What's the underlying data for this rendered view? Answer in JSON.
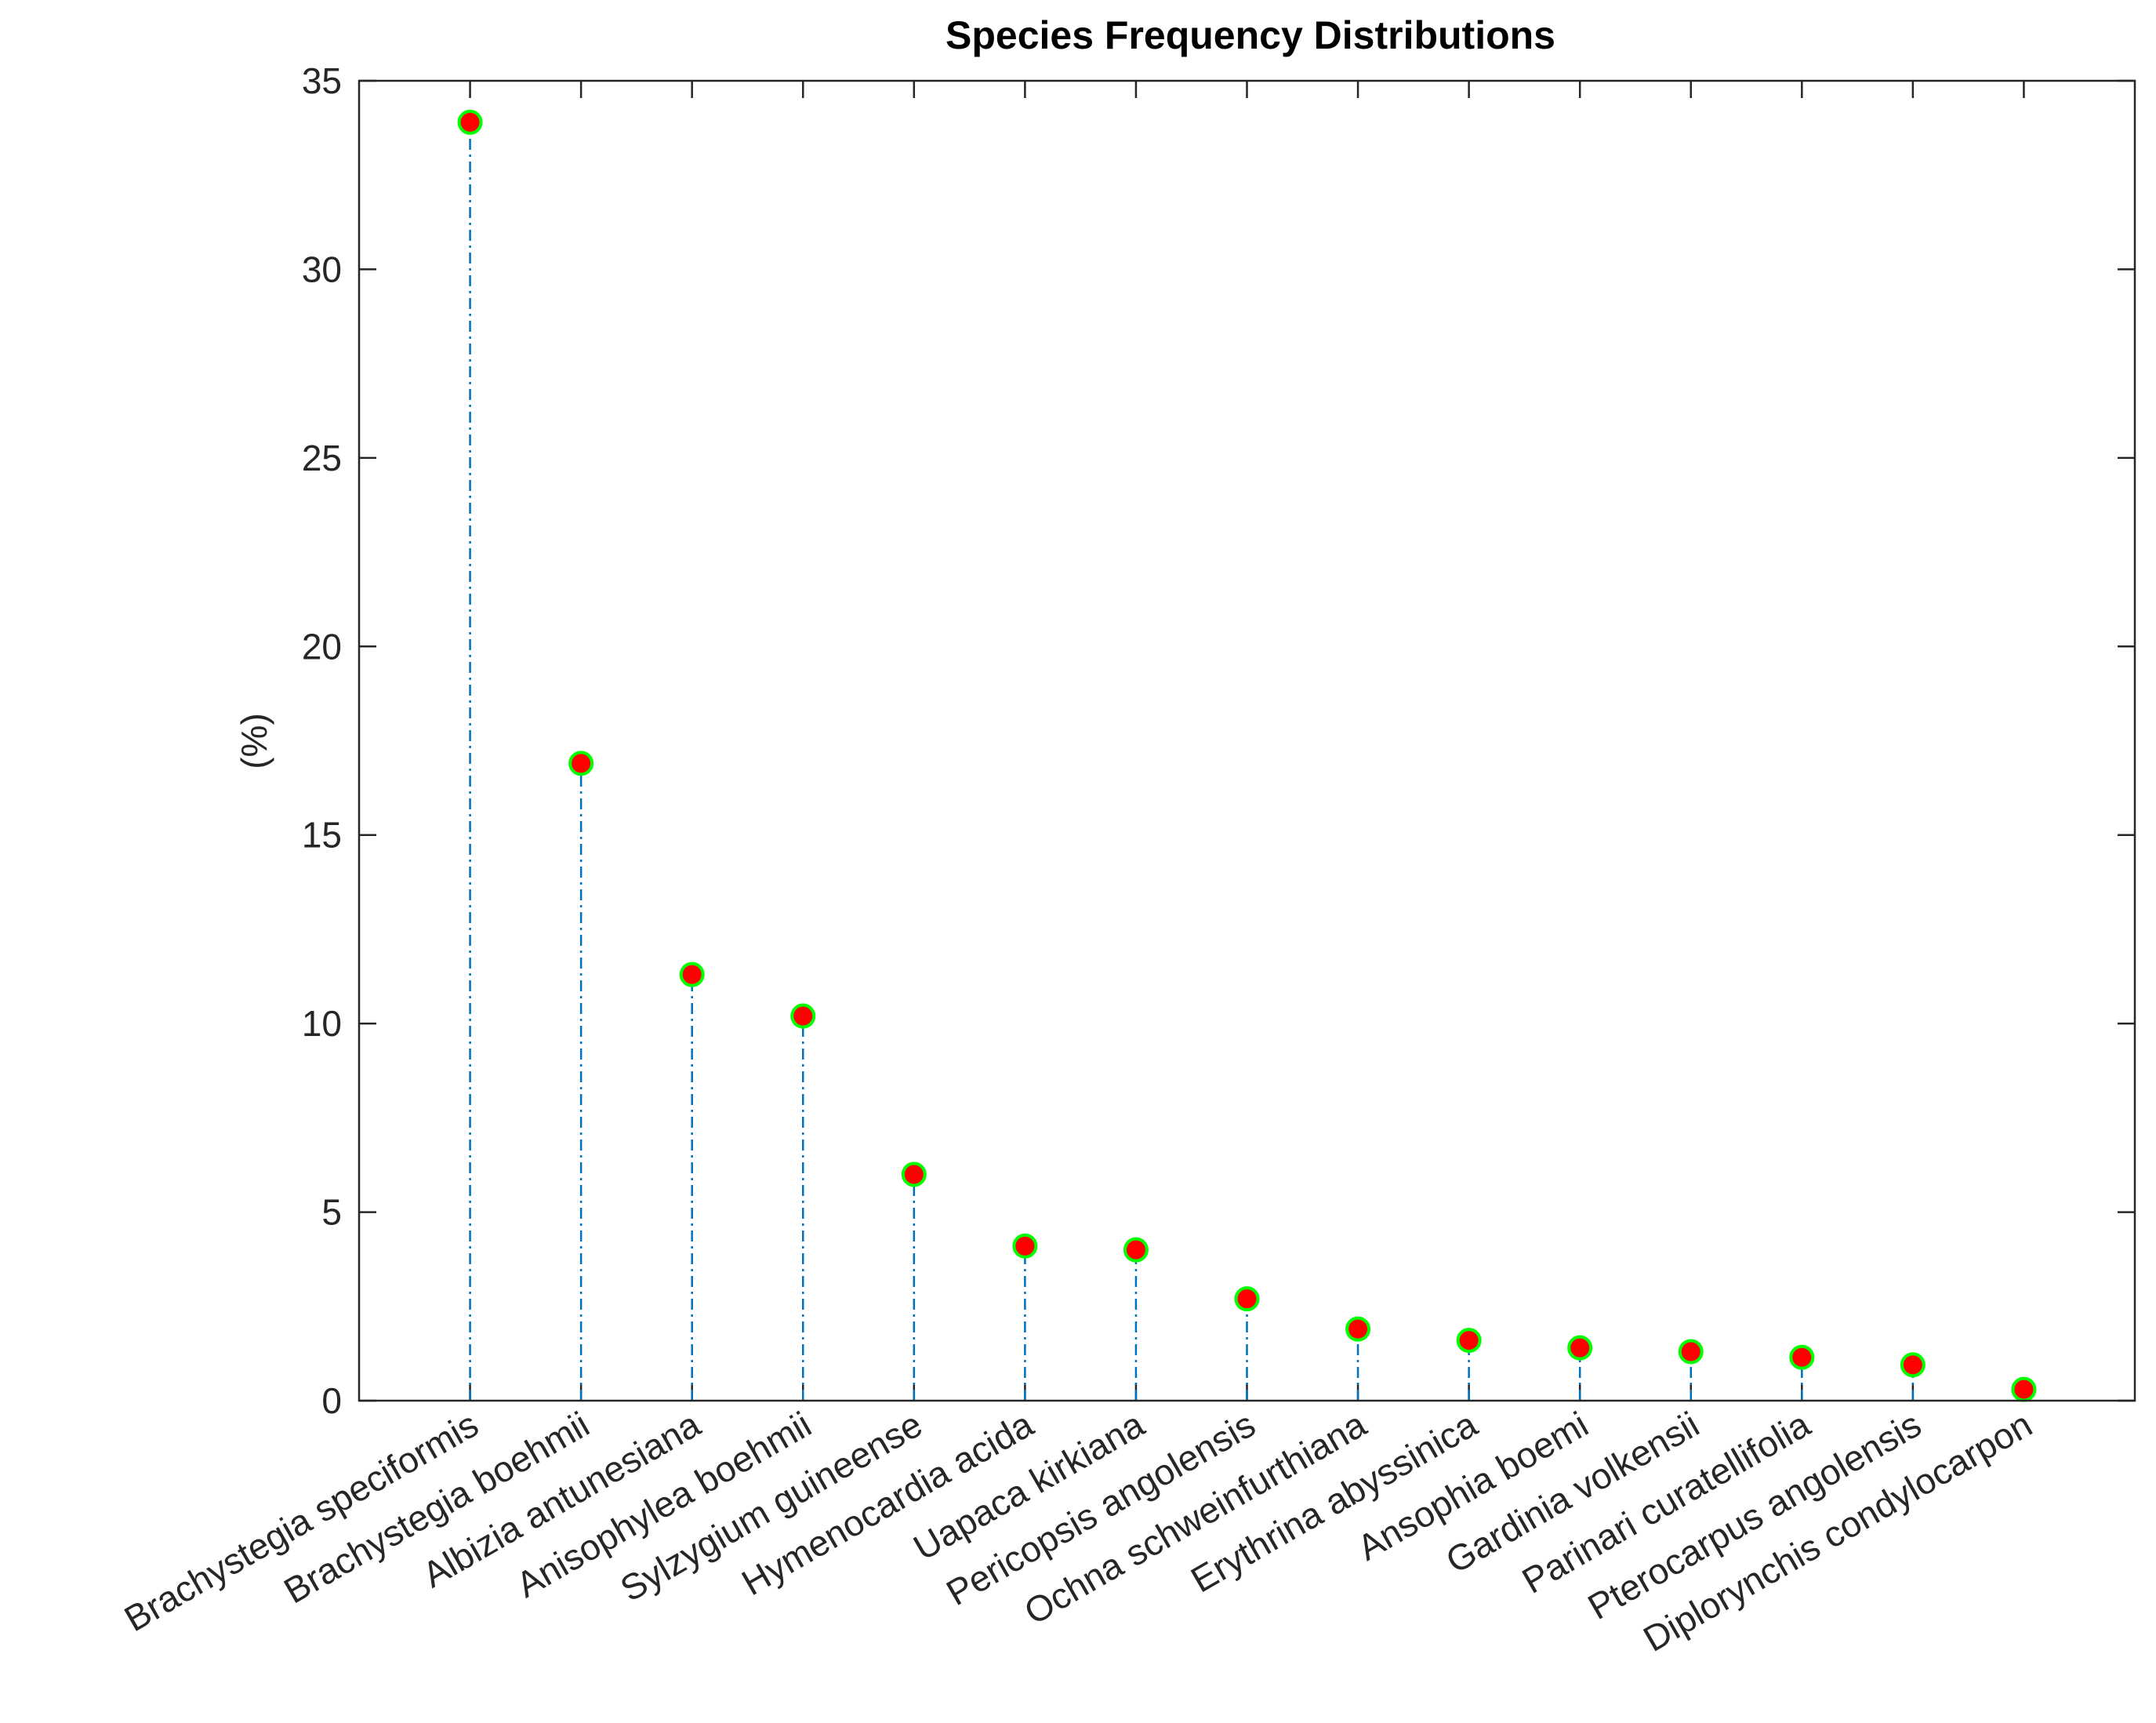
{
  "chart_data": {
    "type": "stem",
    "title": "Species Frequency Distributions",
    "xlabel": "",
    "ylabel": "(%)",
    "ylim": [
      0,
      35
    ],
    "yticks": [
      0,
      5,
      10,
      15,
      20,
      25,
      30,
      35
    ],
    "categories": [
      "Brachystegia speciformis",
      "Brachystegia boehmii",
      "Albizia antunesiana",
      "Anisophylea boehmii",
      "Sylzygium guineense",
      "Hymenocardia acida",
      "Uapaca kirkiana",
      "Pericopsis angolensis",
      "Ochna schweinfurthiana",
      "Erythrina abyssinica",
      "Ansophia boemi",
      "Gardinia volkensii",
      "Parinari curatellifolia",
      "Pterocarpus angolensis",
      "Diplorynchis condylocarpon"
    ],
    "values": [
      33.9,
      16.9,
      11.3,
      10.2,
      6.0,
      4.1,
      4.0,
      2.7,
      1.9,
      1.6,
      1.4,
      1.3,
      1.15,
      0.95,
      0.3
    ],
    "grid": false,
    "colors": {
      "stem": "#0072BD",
      "marker_fill": "#ff0000",
      "marker_edge": "#00ff00",
      "axis": "#262626"
    }
  }
}
